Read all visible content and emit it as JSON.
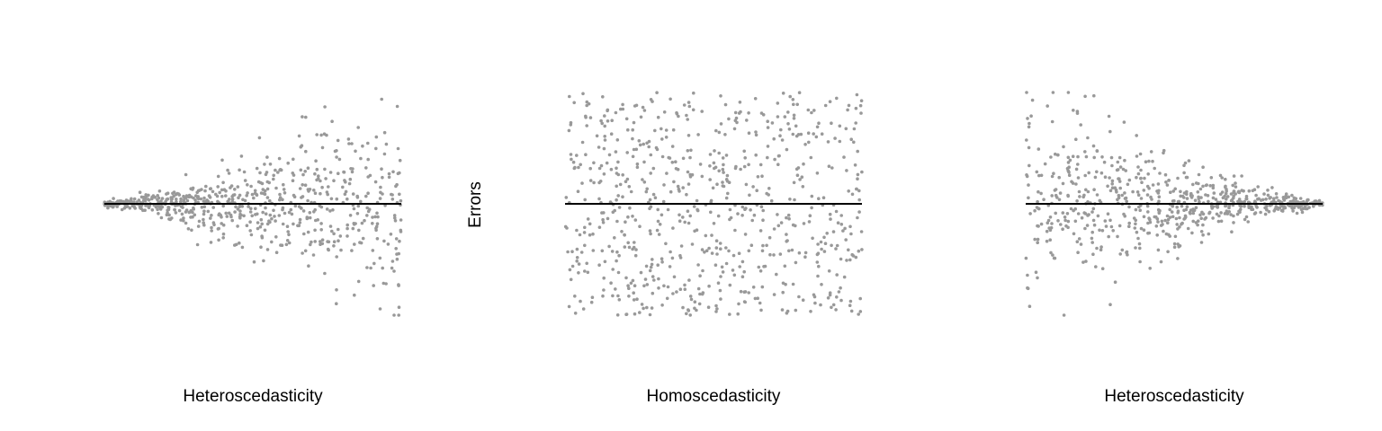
{
  "chart_data": [
    {
      "type": "scatter",
      "xlabel": "Heteroscedasticity",
      "ylabel": "Errors",
      "pattern": "variance increases with x",
      "baseline_y": 0,
      "grid": false,
      "point_color": "#999999",
      "line_color": "#000000"
    },
    {
      "type": "scatter",
      "xlabel": "Homoscedasticity",
      "ylabel": "",
      "pattern": "constant variance",
      "baseline_y": 0,
      "grid": false,
      "point_color": "#999999",
      "line_color": "#000000"
    },
    {
      "type": "scatter",
      "xlabel": "Heteroscedasticity",
      "ylabel": "",
      "pattern": "variance decreases with x",
      "baseline_y": 0,
      "grid": false,
      "point_color": "#999999",
      "line_color": "#000000"
    }
  ]
}
